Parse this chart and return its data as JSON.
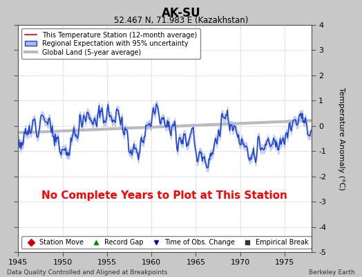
{
  "title": "AK-SU",
  "subtitle": "52.467 N, 71.983 E (Kazakhstan)",
  "xlabel_left": "Data Quality Controlled and Aligned at Breakpoints",
  "xlabel_right": "Berkeley Earth",
  "ylabel": "Temperature Anomaly (°C)",
  "xlim": [
    1945,
    1978
  ],
  "ylim": [
    -5,
    4
  ],
  "yticks": [
    -5,
    -4,
    -3,
    -2,
    -1,
    0,
    1,
    2,
    3,
    4
  ],
  "xticks": [
    1945,
    1950,
    1955,
    1960,
    1965,
    1970,
    1975
  ],
  "no_data_text": "No Complete Years to Plot at This Station",
  "no_data_color": "#ff0000",
  "background_color": "#c8c8c8",
  "plot_bg_color": "#ffffff",
  "regional_fill_color": "#aabbee",
  "regional_line_color": "#2244cc",
  "global_land_color": "#bbbbbb",
  "station_color": "#dd0000",
  "legend_entries": [
    {
      "label": "This Temperature Station (12-month average)",
      "color": "#dd0000",
      "lw": 1.2
    },
    {
      "label": "Regional Expectation with 95% uncertainty",
      "color": "#2244cc",
      "lw": 1.2
    },
    {
      "label": "Global Land (5-year average)",
      "color": "#bbbbbb",
      "lw": 3.0
    }
  ],
  "bottom_legend": [
    {
      "label": "Station Move",
      "marker": "D",
      "color": "#cc0000"
    },
    {
      "label": "Record Gap",
      "marker": "^",
      "color": "#008800"
    },
    {
      "label": "Time of Obs. Change",
      "marker": "v",
      "color": "#0000cc"
    },
    {
      "label": "Empirical Break",
      "marker": "s",
      "color": "#333333"
    }
  ],
  "seed": 12,
  "n_points": 396,
  "start_year": 1945.0,
  "end_year": 1978.0
}
